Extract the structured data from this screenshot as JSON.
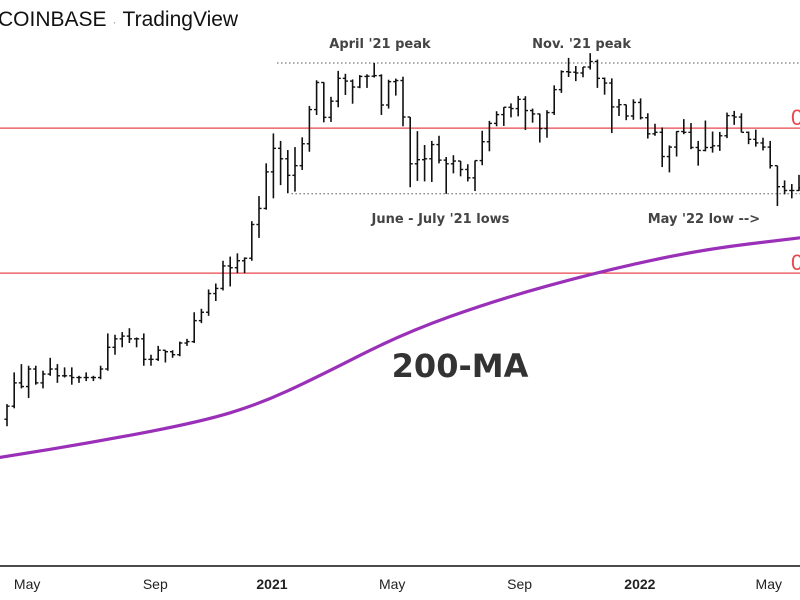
{
  "header": {
    "exchange": "COINBASE",
    "separator": "·",
    "source": "TradingView"
  },
  "chart_data": {
    "type": "ohlc",
    "scale": "log",
    "interval": "weekly",
    "fields": [
      "open",
      "high",
      "low",
      "close"
    ],
    "unit": "USD thousands",
    "bars": [
      [
        7.1,
        7.8,
        6.8,
        7.7
      ],
      [
        7.7,
        9.5,
        7.6,
        8.9
      ],
      [
        8.9,
        10.0,
        8.6,
        8.7
      ],
      [
        8.7,
        9.9,
        8.1,
        9.7
      ],
      [
        9.7,
        9.9,
        8.8,
        8.9
      ],
      [
        8.9,
        9.6,
        8.6,
        9.4
      ],
      [
        9.4,
        10.4,
        9.3,
        9.7
      ],
      [
        9.7,
        10.0,
        8.9,
        9.3
      ],
      [
        9.3,
        9.8,
        9.2,
        9.3
      ],
      [
        9.3,
        9.8,
        8.8,
        9.2
      ],
      [
        9.2,
        9.3,
        8.9,
        9.2
      ],
      [
        9.2,
        9.5,
        9.0,
        9.2
      ],
      [
        9.2,
        9.3,
        9.0,
        9.2
      ],
      [
        9.2,
        9.9,
        9.1,
        9.7
      ],
      [
        9.7,
        12.1,
        9.6,
        11.1
      ],
      [
        11.1,
        12.0,
        10.6,
        11.7
      ],
      [
        11.7,
        12.2,
        11.1,
        11.9
      ],
      [
        11.9,
        12.5,
        11.4,
        11.7
      ],
      [
        11.7,
        11.8,
        11.1,
        11.7
      ],
      [
        11.7,
        12.1,
        9.9,
        10.3
      ],
      [
        10.3,
        10.6,
        9.9,
        10.3
      ],
      [
        10.3,
        11.2,
        10.2,
        10.9
      ],
      [
        10.9,
        10.9,
        10.1,
        10.8
      ],
      [
        10.8,
        10.9,
        10.4,
        10.6
      ],
      [
        10.6,
        11.5,
        10.5,
        11.4
      ],
      [
        11.4,
        11.7,
        11.2,
        11.5
      ],
      [
        11.5,
        13.8,
        11.4,
        13.1
      ],
      [
        13.1,
        14.1,
        12.9,
        13.8
      ],
      [
        13.8,
        15.9,
        13.5,
        15.5
      ],
      [
        15.5,
        16.5,
        14.8,
        16.0
      ],
      [
        16.0,
        19.0,
        15.8,
        18.4
      ],
      [
        18.4,
        19.5,
        16.2,
        18.2
      ],
      [
        18.2,
        19.9,
        17.6,
        19.0
      ],
      [
        19.0,
        19.4,
        17.6,
        19.3
      ],
      [
        19.3,
        24.3,
        19.0,
        23.8
      ],
      [
        23.8,
        28.4,
        21.9,
        26.3
      ],
      [
        26.3,
        34.8,
        26.1,
        33.0
      ],
      [
        33.0,
        41.9,
        28.0,
        38.2
      ],
      [
        38.2,
        40.0,
        30.4,
        35.8
      ],
      [
        35.8,
        37.8,
        28.9,
        32.3
      ],
      [
        32.3,
        38.5,
        29.2,
        34.3
      ],
      [
        34.3,
        40.9,
        33.4,
        39.3
      ],
      [
        39.3,
        49.7,
        37.4,
        48.6
      ],
      [
        48.6,
        58.3,
        47.0,
        57.5
      ],
      [
        57.5,
        57.6,
        44.9,
        46.3
      ],
      [
        46.3,
        52.6,
        45.0,
        51.2
      ],
      [
        51.2,
        61.8,
        49.3,
        59.0
      ],
      [
        59.0,
        60.7,
        53.2,
        58.0
      ],
      [
        58.0,
        58.6,
        50.4,
        55.9
      ],
      [
        55.9,
        60.2,
        55.5,
        59.7
      ],
      [
        59.7,
        60.5,
        55.6,
        59.8
      ],
      [
        59.8,
        64.9,
        59.3,
        60.0
      ],
      [
        60.0,
        60.5,
        47.0,
        50.0
      ],
      [
        50.0,
        58.5,
        48.9,
        57.8
      ],
      [
        57.8,
        58.9,
        53.0,
        58.2
      ],
      [
        58.2,
        59.6,
        43.8,
        46.4
      ],
      [
        46.4,
        46.4,
        30.0,
        34.7
      ],
      [
        34.7,
        42.5,
        31.2,
        35.6
      ],
      [
        35.6,
        39.0,
        31.1,
        35.8
      ],
      [
        35.8,
        40.0,
        31.0,
        39.1
      ],
      [
        39.1,
        41.3,
        34.8,
        35.5
      ],
      [
        35.5,
        36.2,
        28.8,
        34.7
      ],
      [
        34.7,
        36.6,
        32.7,
        35.3
      ],
      [
        35.3,
        35.3,
        32.1,
        33.5
      ],
      [
        33.5,
        34.6,
        31.1,
        31.8
      ],
      [
        31.8,
        35.4,
        29.3,
        35.4
      ],
      [
        35.4,
        42.6,
        34.4,
        39.8
      ],
      [
        39.8,
        45.3,
        37.5,
        44.6
      ],
      [
        44.6,
        48.1,
        43.8,
        47.1
      ],
      [
        47.1,
        49.3,
        43.9,
        49.3
      ],
      [
        49.3,
        50.5,
        46.3,
        48.9
      ],
      [
        48.9,
        52.9,
        46.6,
        51.8
      ],
      [
        51.8,
        52.8,
        42.8,
        48.3
      ],
      [
        48.3,
        48.9,
        44.8,
        47.3
      ],
      [
        47.3,
        47.4,
        39.6,
        43.2
      ],
      [
        43.2,
        48.4,
        40.8,
        47.7
      ],
      [
        47.7,
        56.5,
        47.0,
        55.0
      ],
      [
        55.0,
        62.0,
        53.9,
        61.5
      ],
      [
        61.5,
        67.0,
        59.5,
        61.3
      ],
      [
        61.3,
        63.7,
        58.0,
        61.0
      ],
      [
        61.0,
        63.3,
        59.4,
        63.3
      ],
      [
        63.3,
        69.0,
        62.3,
        65.5
      ],
      [
        65.5,
        66.3,
        55.6,
        59.0
      ],
      [
        59.0,
        59.3,
        53.3,
        57.3
      ],
      [
        57.3,
        59.0,
        42.0,
        49.4
      ],
      [
        49.4,
        51.9,
        46.7,
        50.1
      ],
      [
        50.1,
        50.1,
        45.5,
        46.7
      ],
      [
        46.7,
        51.8,
        45.6,
        50.8
      ],
      [
        50.8,
        52.1,
        45.7,
        46.2
      ],
      [
        46.2,
        47.5,
        40.6,
        41.8
      ],
      [
        41.8,
        44.5,
        41.3,
        42.2
      ],
      [
        42.2,
        43.5,
        34.0,
        36.3
      ],
      [
        36.3,
        38.9,
        32.9,
        38.5
      ],
      [
        38.5,
        42.5,
        36.3,
        42.4
      ],
      [
        42.4,
        45.8,
        41.7,
        42.2
      ],
      [
        42.2,
        44.7,
        38.0,
        38.4
      ],
      [
        38.4,
        40.0,
        34.3,
        37.7
      ],
      [
        37.7,
        45.4,
        37.5,
        38.4
      ],
      [
        38.4,
        42.4,
        37.2,
        38.8
      ],
      [
        38.8,
        42.3,
        37.6,
        41.3
      ],
      [
        41.3,
        47.7,
        40.7,
        46.8
      ],
      [
        46.8,
        48.2,
        44.2,
        46.4
      ],
      [
        46.4,
        47.5,
        42.2,
        42.2
      ],
      [
        42.2,
        42.4,
        39.2,
        40.4
      ],
      [
        40.4,
        42.9,
        38.6,
        39.5
      ],
      [
        39.5,
        40.8,
        37.7,
        38.5
      ],
      [
        38.5,
        40.0,
        33.7,
        34.3
      ],
      [
        34.3,
        34.3,
        26.7,
        30.1
      ],
      [
        30.1,
        31.3,
        28.7,
        29.4
      ],
      [
        29.4,
        30.6,
        28.0,
        29.4
      ],
      [
        29.4,
        32.4,
        29.3,
        29.9
      ]
    ],
    "moving_average": {
      "label": "200-MA",
      "color": "#9b30b8",
      "points": [
        [
          -1,
          5.6
        ],
        [
          13,
          6.2
        ],
        [
          27,
          7.0
        ],
        [
          35,
          7.8
        ],
        [
          43,
          9.2
        ],
        [
          55,
          12.1
        ],
        [
          68,
          14.9
        ],
        [
          82,
          17.7
        ],
        [
          96,
          20.3
        ],
        [
          110,
          21.9
        ]
      ]
    },
    "horizontal_levels": [
      {
        "value": 43.3,
        "color": "#e8474f",
        "label": "0"
      },
      {
        "value": 17.6,
        "color": "#e8474f",
        "label": "0"
      }
    ],
    "reference_lines": [
      {
        "value": 64.9,
        "from_bar": 37.5,
        "style": "dotted"
      },
      {
        "value": 28.8,
        "from_bar": 39.5,
        "style": "dotted"
      }
    ],
    "annotations": [
      {
        "text": "April '21 peak",
        "bar": 51.8,
        "value": 64.9,
        "anchor": "above"
      },
      {
        "text": "Nov. '21 peak",
        "bar": 79.8,
        "value": 64.9,
        "anchor": "above"
      },
      {
        "text": "June - July '21 lows",
        "bar": 60.2,
        "value": 28.8,
        "anchor": "below"
      },
      {
        "text": "May '22 low -->",
        "bar": 96.8,
        "value": 28.8,
        "anchor": "below"
      }
    ],
    "x_ticks": [
      {
        "label": "May",
        "bar": 2.8,
        "bold": false
      },
      {
        "label": "Sep",
        "bar": 20.6,
        "bold": false
      },
      {
        "label": "2021",
        "bar": 36.8,
        "bold": true
      },
      {
        "label": "May",
        "bar": 53.5,
        "bold": false
      },
      {
        "label": "Sep",
        "bar": 71.2,
        "bold": false
      },
      {
        "label": "2022",
        "bar": 87.9,
        "bold": true
      },
      {
        "label": "May",
        "bar": 105.8,
        "bold": false
      }
    ]
  }
}
